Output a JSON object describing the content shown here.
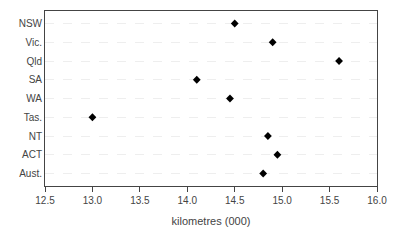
{
  "chart_data": {
    "type": "dot",
    "categories": [
      "NSW",
      "Vic.",
      "Qld",
      "SA",
      "WA",
      "Tas.",
      "NT",
      "ACT",
      "Aust."
    ],
    "values": [
      14.5,
      14.9,
      15.6,
      14.1,
      14.45,
      13.0,
      14.85,
      14.95,
      14.8
    ],
    "xlabel": "kilometres (000)",
    "xlim": [
      12.5,
      16.0
    ],
    "xticks": [
      12.5,
      {
        "value": 13.0,
        "label": "13.0"
      },
      13.5,
      {
        "value": 14.0,
        "label": "14.0"
      },
      14.5,
      {
        "value": 15.0,
        "label": "15.0"
      },
      15.5,
      {
        "value": 16.0,
        "label": "16.0"
      }
    ],
    "marker": "diamond",
    "color": "#000000",
    "grid": true
  }
}
